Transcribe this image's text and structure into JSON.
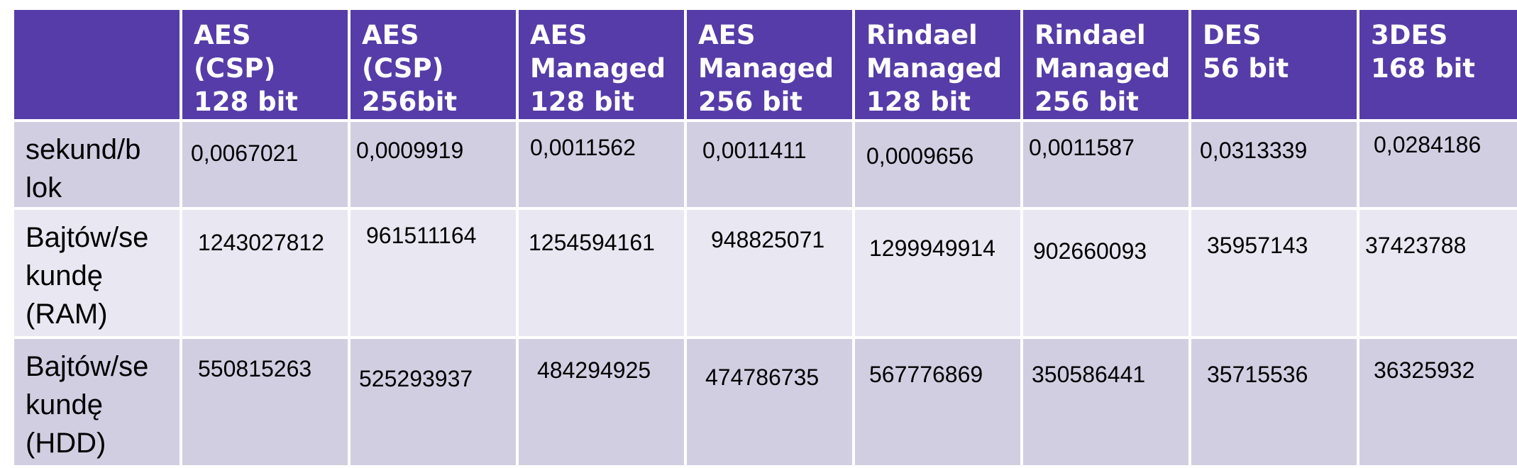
{
  "table": {
    "headers": [
      "",
      "AES (CSP)\n128 bit",
      "AES (CSP)\n256bit",
      "AES\nManaged\n128 bit",
      "AES\nManaged\n256 bit",
      "Rindael\nManaged\n128 bit",
      "Rindael\nManaged\n256 bit",
      "DES\n56 bit",
      "3DES\n168 bit"
    ],
    "rows": [
      {
        "label": "sekund/b\nlok",
        "values": [
          "0,0067021",
          "0,0009919",
          "0,0011562",
          "0,0011411",
          "0,0009656",
          "0,0011587",
          "0,0313339",
          "0,0284186"
        ]
      },
      {
        "label": "Bajtów/se\nkundę\n(RAM)",
        "values": [
          "1243027812",
          "961511164",
          "1254594161",
          "948825071",
          "1299949914",
          "902660093",
          "35957143",
          "37423788"
        ]
      },
      {
        "label": "Bajtów/se\nkundę\n(HDD)",
        "values": [
          "550815263",
          "525293937",
          "484294925",
          "474786735",
          "567776869",
          "350586441",
          "35715536",
          "36325932"
        ]
      }
    ]
  }
}
